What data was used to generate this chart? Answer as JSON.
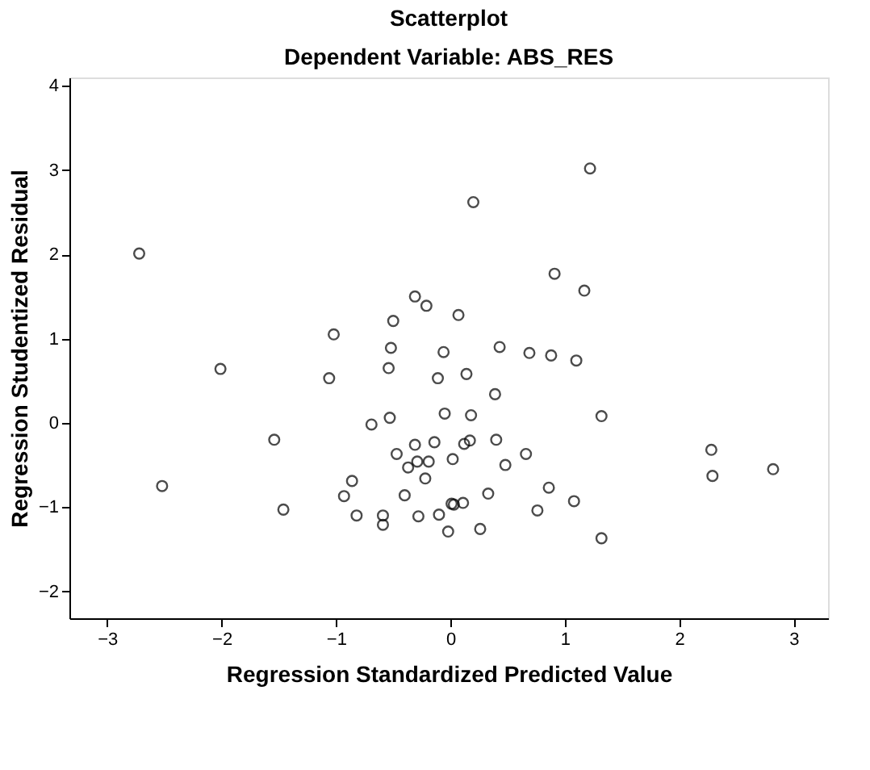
{
  "chart_data": {
    "type": "scatter",
    "title": "Scatterplot",
    "subtitle": "Dependent Variable: ABS_RES",
    "xlabel": "Regression Standardized Predicted Value",
    "ylabel": "Regression Studentized Residual",
    "x": [
      -2.72,
      0.2,
      1.22,
      -0.31,
      -0.21,
      -0.5,
      -1.02,
      -0.52,
      -0.06,
      -2.01,
      0.91,
      1.17,
      0.07,
      0.43,
      0.69,
      0.88,
      1.1,
      0.14,
      -1.06,
      -0.54,
      -0.11,
      -0.69,
      -0.53,
      -0.05,
      -1.54,
      -2.52,
      -1.46,
      -0.31,
      -0.14,
      -0.47,
      -0.37,
      -0.29,
      -0.19,
      -0.22,
      -0.86,
      -0.93,
      -0.4,
      -0.82,
      -0.59,
      -0.59,
      -0.28,
      -0.1,
      -0.02,
      0.02,
      0.01,
      0.39,
      0.18,
      1.32,
      0.12,
      0.17,
      0.4,
      0.66,
      0.48,
      0.86,
      0.33,
      0.76,
      1.08,
      0.03,
      0.11,
      0.26,
      1.32,
      2.28,
      2.29,
      2.82
    ],
    "series": [
      {
        "color": "#000000",
        "values": [
          2.01,
          2.62,
          3.02,
          1.5,
          1.39,
          1.21,
          1.05,
          0.89,
          0.84,
          0.64,
          1.77,
          1.57,
          1.28,
          0.9,
          0.83,
          0.8,
          0.74,
          0.58,
          0.53,
          0.65,
          0.53,
          -0.02,
          0.06,
          0.11,
          -0.2,
          -0.75,
          -1.03,
          -0.26,
          -0.23,
          -0.37,
          -0.53,
          -0.46,
          -0.46,
          -0.66,
          -0.69,
          -0.87,
          -0.86,
          -1.1,
          -1.1,
          -1.21,
          -1.11,
          -1.09,
          -1.29,
          -0.43,
          -0.96,
          0.34,
          0.09,
          0.08,
          -0.25,
          -0.21,
          -0.2,
          -0.37,
          -0.5,
          -0.77,
          -0.84,
          -1.04,
          -0.93,
          -0.97,
          -0.95,
          -1.26,
          -1.37,
          -0.32,
          -0.63,
          -0.55
        ]
      }
    ],
    "xlim": [
      -3.33,
      3.3
    ],
    "ylim": [
      -2.32,
      4.1
    ],
    "xticks": [
      -3,
      -2,
      -1,
      0,
      1,
      2,
      3
    ],
    "yticks": [
      -2,
      -1,
      0,
      1,
      2,
      3,
      4
    ],
    "marker": "circle",
    "grid": false,
    "legend": false
  }
}
